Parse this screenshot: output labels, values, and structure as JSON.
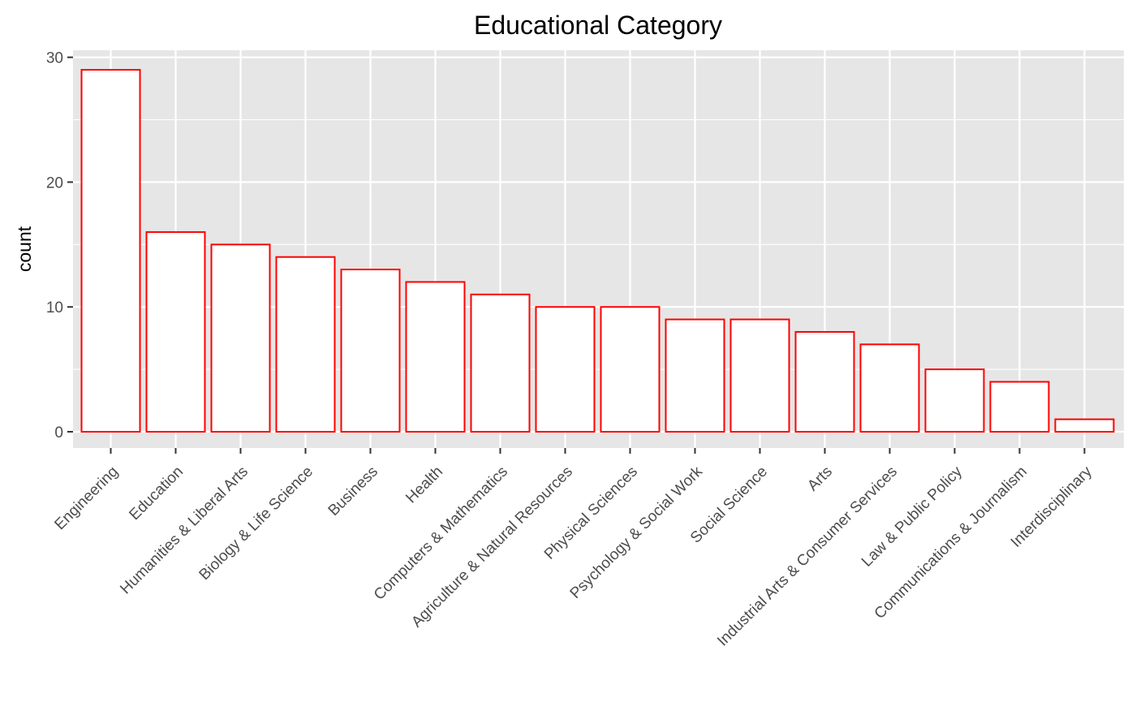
{
  "chart_data": {
    "type": "bar",
    "title": "Educational Category",
    "xlabel": "",
    "ylabel": "count",
    "ylim": [
      0,
      30
    ],
    "yticks": [
      0,
      10,
      20,
      30
    ],
    "grid": true,
    "categories": [
      "Engineering",
      "Education",
      "Humanities & Liberal Arts",
      "Biology & Life Science",
      "Business",
      "Health",
      "Computers & Mathematics",
      "Agriculture & Natural Resources",
      "Physical Sciences",
      "Psychology & Social Work",
      "Social Science",
      "Arts",
      "Industrial Arts & Consumer Services",
      "Law & Public Policy",
      "Communications & Journalism",
      "Interdisciplinary"
    ],
    "values": [
      29,
      16,
      15,
      14,
      13,
      12,
      11,
      10,
      10,
      9,
      9,
      8,
      7,
      5,
      4,
      1
    ],
    "colors": {
      "bar_fill": "#ffffff",
      "bar_outline": "#ff0000",
      "panel_background": "#e6e6e6",
      "grid": "#ffffff"
    }
  }
}
